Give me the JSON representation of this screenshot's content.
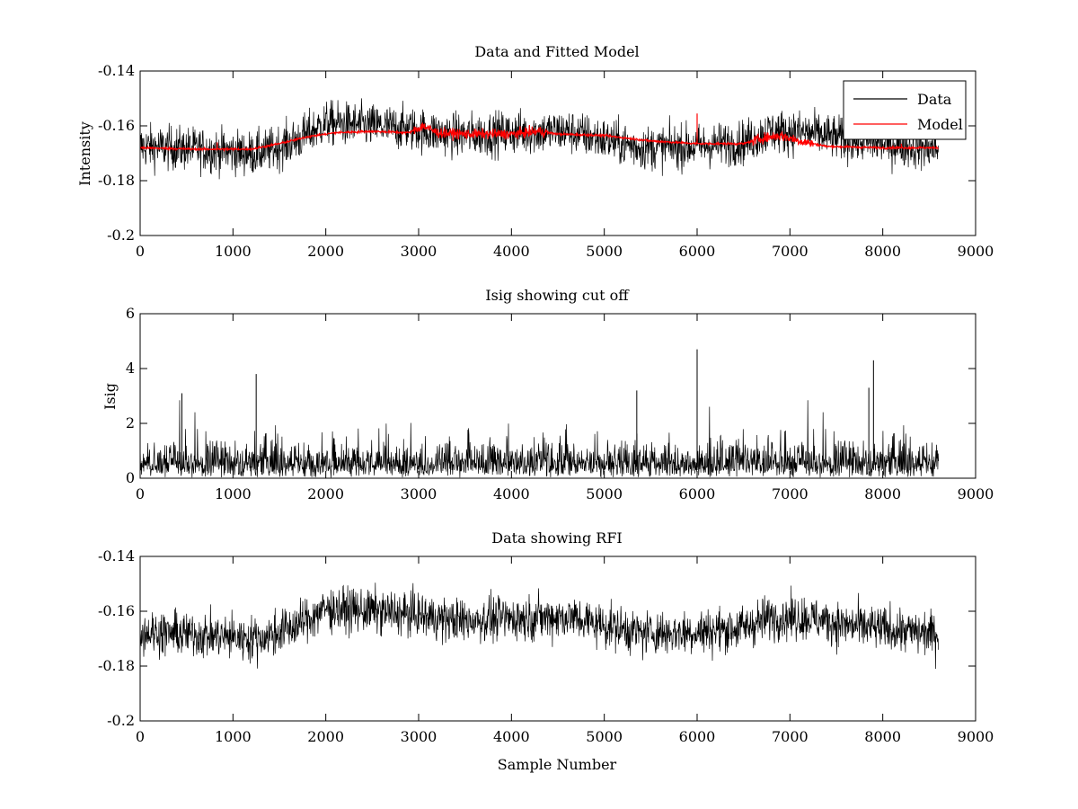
{
  "figure": {
    "background": "#ffffff"
  },
  "chart_data": [
    {
      "type": "line",
      "title": "Data and Fitted Model",
      "xlabel": "",
      "ylabel": "Intensity",
      "xlim": [
        0,
        9000
      ],
      "ylim": [
        -0.2,
        -0.14
      ],
      "x_ticks": [
        0,
        1000,
        2000,
        3000,
        4000,
        5000,
        6000,
        7000,
        8000,
        9000
      ],
      "y_ticks": [
        -0.14,
        -0.16,
        -0.18,
        -0.2
      ],
      "x_tick_labels": [
        "0",
        "1000",
        "2000",
        "3000",
        "4000",
        "5000",
        "6000",
        "7000",
        "8000",
        "9000"
      ],
      "y_tick_labels": [
        "-0.14",
        "-0.16",
        "-0.18",
        "-0.2"
      ],
      "grid": false,
      "legend": {
        "placement": "top-right",
        "entries": [
          "Data",
          "Model"
        ]
      },
      "series": [
        {
          "name": "Data",
          "color": "#000000",
          "kind": "noisy",
          "x_range": [
            0,
            8600
          ],
          "baseline": {
            "x": [
              0,
              600,
              1200,
              1350,
              1700,
              2000,
              2500,
              2900,
              3400,
              4000,
              4600,
              5000,
              5400,
              6000,
              6500,
              6800,
              7200,
              7600,
              8000,
              8600
            ],
            "y": [
              -0.1675,
              -0.1685,
              -0.17,
              -0.1695,
              -0.165,
              -0.159,
              -0.16,
              -0.161,
              -0.1635,
              -0.1625,
              -0.162,
              -0.165,
              -0.168,
              -0.1675,
              -0.166,
              -0.162,
              -0.1625,
              -0.165,
              -0.1665,
              -0.1685
            ]
          },
          "noise_amplitude": 0.012
        },
        {
          "name": "Model",
          "color": "#ff0000",
          "kind": "smooth",
          "x_range": [
            0,
            8600
          ],
          "x": [
            0,
            600,
            1200,
            1500,
            1800,
            2100,
            2500,
            2900,
            3050,
            3200,
            3500,
            4000,
            4300,
            4500,
            5000,
            5500,
            6000,
            6500,
            6700,
            6900,
            7100,
            7400,
            8000,
            8600
          ],
          "y": [
            -0.168,
            -0.1685,
            -0.1685,
            -0.1665,
            -0.164,
            -0.1625,
            -0.162,
            -0.1625,
            -0.16,
            -0.1625,
            -0.163,
            -0.163,
            -0.162,
            -0.163,
            -0.1635,
            -0.1655,
            -0.1665,
            -0.1665,
            -0.1645,
            -0.1635,
            -0.1655,
            -0.1675,
            -0.168,
            -0.168
          ],
          "spikes": [
            {
              "x": 6000,
              "y": -0.1555
            },
            {
              "x": 830,
              "y": -0.166
            },
            {
              "x": 8200,
              "y": -0.1665
            }
          ]
        }
      ]
    },
    {
      "type": "line",
      "title": "Isig showing cut off",
      "xlabel": "",
      "ylabel": "Isig",
      "xlim": [
        0,
        9000
      ],
      "ylim": [
        0,
        6
      ],
      "x_ticks": [
        0,
        1000,
        2000,
        3000,
        4000,
        5000,
        6000,
        7000,
        8000,
        9000
      ],
      "y_ticks": [
        0,
        2,
        4,
        6
      ],
      "x_tick_labels": [
        "0",
        "1000",
        "2000",
        "3000",
        "4000",
        "5000",
        "6000",
        "7000",
        "8000",
        "9000"
      ],
      "y_tick_labels": [
        "0",
        "2",
        "4",
        "6"
      ],
      "grid": false,
      "series": [
        {
          "color": "#000000",
          "kind": "positive-noise",
          "x_range": [
            0,
            8600
          ],
          "typical_max": 2.0,
          "peaks": [
            {
              "x": 1250,
              "y": 3.8
            },
            {
              "x": 6000,
              "y": 4.7
            },
            {
              "x": 7900,
              "y": 4.3
            },
            {
              "x": 5350,
              "y": 3.2
            },
            {
              "x": 450,
              "y": 3.1
            },
            {
              "x": 7850,
              "y": 3.3
            }
          ]
        }
      ]
    },
    {
      "type": "line",
      "title": "Data showing RFI",
      "xlabel": "Sample Number",
      "ylabel": "",
      "xlim": [
        0,
        9000
      ],
      "ylim": [
        -0.2,
        -0.14
      ],
      "x_ticks": [
        0,
        1000,
        2000,
        3000,
        4000,
        5000,
        6000,
        7000,
        8000,
        9000
      ],
      "y_ticks": [
        -0.14,
        -0.16,
        -0.18,
        -0.2
      ],
      "x_tick_labels": [
        "0",
        "1000",
        "2000",
        "3000",
        "4000",
        "5000",
        "6000",
        "7000",
        "8000",
        "9000"
      ],
      "y_tick_labels": [
        "-0.14",
        "-0.16",
        "-0.18",
        "-0.2"
      ],
      "grid": false,
      "series": [
        {
          "color": "#000000",
          "kind": "noisy",
          "x_range": [
            0,
            8600
          ],
          "baseline": {
            "x": [
              0,
              600,
              1200,
              1350,
              1700,
              2000,
              2500,
              2900,
              3400,
              4000,
              4600,
              5000,
              5400,
              6000,
              6500,
              6800,
              7200,
              7600,
              8000,
              8600
            ],
            "y": [
              -0.1675,
              -0.1685,
              -0.17,
              -0.1695,
              -0.165,
              -0.159,
              -0.16,
              -0.161,
              -0.1635,
              -0.1625,
              -0.162,
              -0.165,
              -0.168,
              -0.1675,
              -0.166,
              -0.162,
              -0.1625,
              -0.165,
              -0.1665,
              -0.1685
            ]
          },
          "noise_amplitude": 0.012
        }
      ]
    }
  ]
}
